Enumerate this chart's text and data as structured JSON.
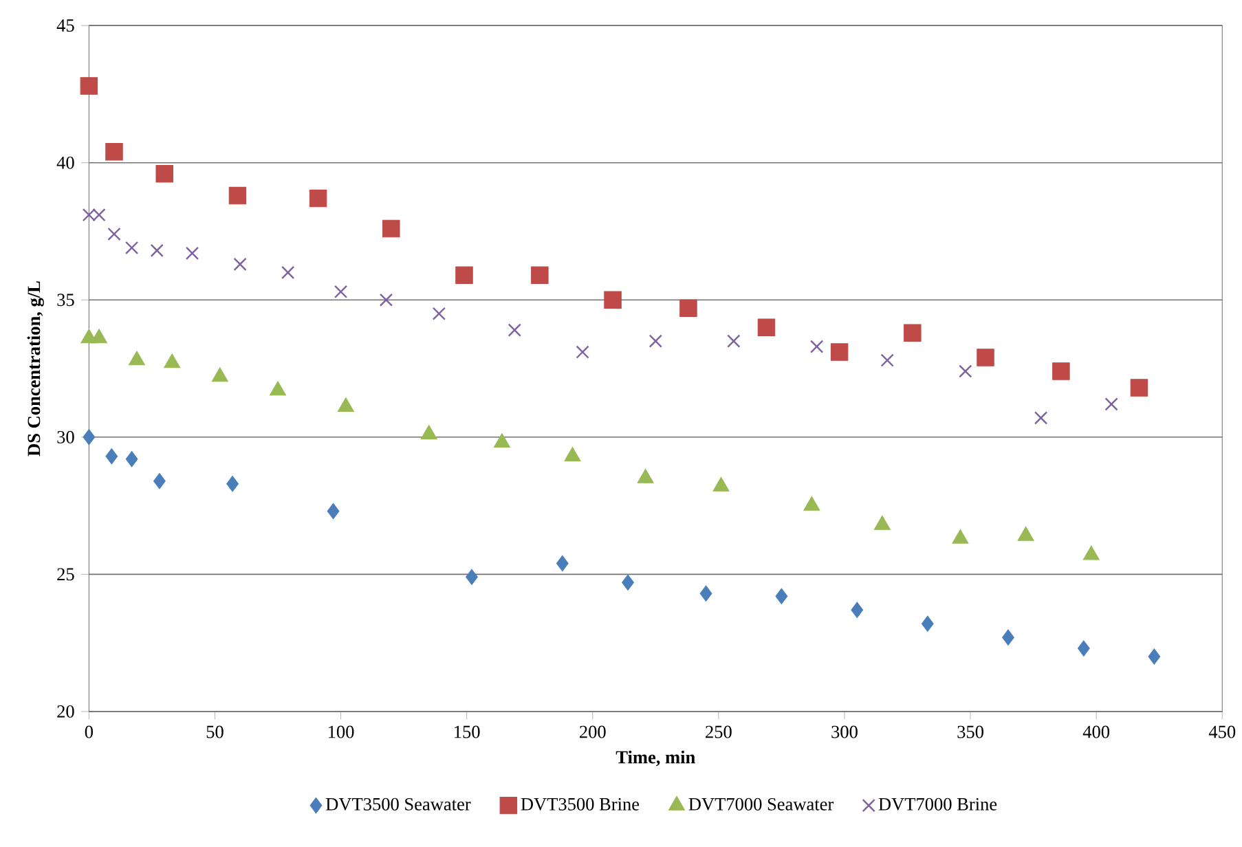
{
  "chart_data": {
    "type": "scatter",
    "xlabel": "Time, min",
    "ylabel": "DS Concentration, g/L",
    "xlim": [
      0,
      450
    ],
    "xticks": [
      0,
      50,
      100,
      150,
      200,
      250,
      300,
      350,
      400,
      450
    ],
    "ylim": [
      20,
      45
    ],
    "yticks": [
      20,
      25,
      30,
      35,
      40,
      45
    ],
    "grid": "y",
    "legend": "bottom",
    "series": [
      {
        "name": "DVT3500 Seawater",
        "color": "#4a7ebb",
        "marker": "diamond",
        "x": [
          0,
          9,
          17,
          28,
          57,
          97,
          152,
          188,
          214,
          245,
          275,
          305,
          333,
          365,
          395,
          423
        ],
        "values": [
          30.0,
          29.3,
          29.2,
          28.4,
          28.3,
          27.3,
          24.9,
          25.4,
          24.7,
          24.3,
          24.2,
          23.7,
          23.2,
          22.7,
          22.3,
          22.0
        ]
      },
      {
        "name": "DVT3500 Brine",
        "color": "#be4b48",
        "marker": "square",
        "x": [
          0,
          10,
          30,
          59,
          91,
          120,
          149,
          179,
          208,
          238,
          269,
          298,
          327,
          356,
          386,
          417
        ],
        "values": [
          42.8,
          40.4,
          39.6,
          38.8,
          38.7,
          37.6,
          35.9,
          35.9,
          35.0,
          34.7,
          34.0,
          33.1,
          33.8,
          32.9,
          32.4,
          31.8
        ]
      },
      {
        "name": "DVT7000 Seawater",
        "color": "#98b954",
        "marker": "triangle",
        "x": [
          0,
          4,
          19,
          33,
          52,
          75,
          102,
          135,
          164,
          192,
          221,
          251,
          287,
          315,
          346,
          372,
          398
        ],
        "values": [
          33.6,
          33.6,
          32.8,
          32.7,
          32.2,
          31.7,
          31.1,
          30.1,
          29.8,
          29.3,
          28.5,
          28.2,
          27.5,
          26.8,
          26.3,
          26.4,
          25.7
        ]
      },
      {
        "name": "DVT7000 Brine",
        "color": "#7d60a0",
        "marker": "cross",
        "x": [
          0,
          4,
          10,
          17,
          27,
          41,
          60,
          79,
          100,
          118,
          139,
          169,
          196,
          225,
          256,
          289,
          317,
          348,
          378,
          406
        ],
        "values": [
          38.1,
          38.1,
          37.4,
          36.9,
          36.8,
          36.7,
          36.3,
          36.0,
          35.3,
          35.0,
          34.5,
          33.9,
          33.1,
          33.5,
          33.5,
          33.3,
          32.8,
          32.4,
          30.7,
          31.2
        ]
      }
    ]
  }
}
